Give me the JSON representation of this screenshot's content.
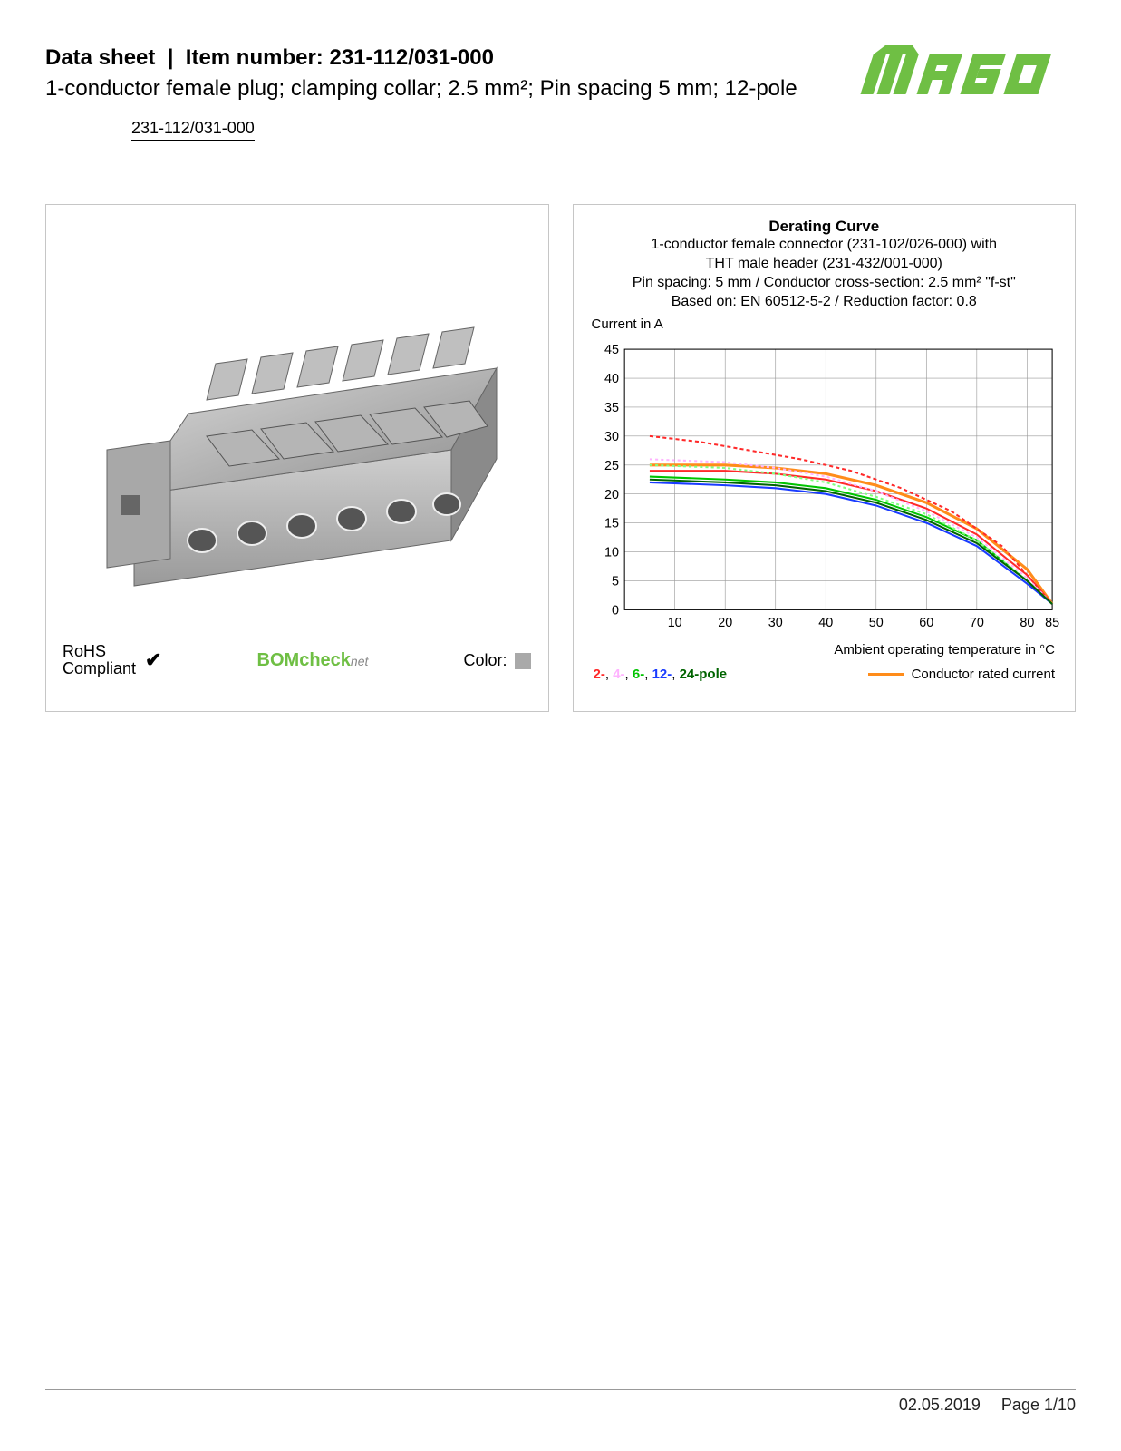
{
  "header": {
    "label_datasheet": "Data sheet",
    "label_itemnumber": "Item number:",
    "part_number": "231-112/031-000",
    "description": "1-conductor female plug; clamping collar; 2.5 mm²; Pin spacing 5 mm; 12-pole",
    "link_text": "231-112/031-000"
  },
  "logo": {
    "name": "WAGO",
    "color": "#6fbf44"
  },
  "product_panel": {
    "rohs_line1": "RoHS",
    "rohs_line2": "Compliant",
    "bomcheck": "BOMcheck",
    "bomcheck_suffix": "net",
    "color_label": "Color:",
    "color_swatch": "#a9a9a9",
    "connector_color": "#b0b0b0"
  },
  "chart": {
    "title": "Derating Curve",
    "sub1": "1-conductor female connector (231-102/026-000) with",
    "sub2": "THT male header (231-432/001-000)",
    "sub3": "Pin spacing: 5 mm / Conductor cross-section: 2.5 mm² \"f-st\"",
    "sub4": "Based on: EN 60512-5-2 / Reduction factor: 0.8",
    "y_label": "Current in A",
    "x_label": "Ambient operating temperature in °C",
    "x_ticks": [
      10,
      20,
      30,
      40,
      50,
      60,
      70,
      80,
      85
    ],
    "y_ticks": [
      0,
      5,
      10,
      15,
      20,
      25,
      30,
      35,
      40,
      45
    ],
    "xlim": [
      0,
      85
    ],
    "ylim": [
      0,
      45
    ],
    "grid_color": "#999999",
    "series": {
      "conductor_rated": {
        "color": "#ff8c1a",
        "width": 3,
        "dash": "none",
        "points": [
          [
            5,
            25
          ],
          [
            20,
            25
          ],
          [
            30,
            24.5
          ],
          [
            40,
            23.5
          ],
          [
            50,
            21.5
          ],
          [
            60,
            18.5
          ],
          [
            70,
            14
          ],
          [
            80,
            7
          ],
          [
            85,
            1
          ]
        ]
      },
      "pole2_solid": {
        "color": "#ff2a2a",
        "width": 2,
        "dash": "none",
        "points": [
          [
            5,
            24
          ],
          [
            20,
            24
          ],
          [
            30,
            23.5
          ],
          [
            40,
            22.5
          ],
          [
            50,
            20.5
          ],
          [
            60,
            17.5
          ],
          [
            70,
            13
          ],
          [
            80,
            6
          ],
          [
            85,
            1
          ]
        ]
      },
      "pole2_dash": {
        "color": "#ff2a2a",
        "width": 2,
        "dash": "4,3",
        "points": [
          [
            5,
            30
          ],
          [
            15,
            29
          ],
          [
            25,
            27.5
          ],
          [
            35,
            26
          ],
          [
            45,
            24
          ],
          [
            55,
            21
          ],
          [
            65,
            17
          ],
          [
            75,
            11
          ],
          [
            83,
            3
          ]
        ]
      },
      "pole4": {
        "color": "#ffb3ff",
        "width": 2,
        "dash": "3,3",
        "points": [
          [
            5,
            26
          ],
          [
            20,
            25.5
          ],
          [
            30,
            24.5
          ],
          [
            40,
            23
          ],
          [
            50,
            20.5
          ],
          [
            60,
            17
          ],
          [
            70,
            12.5
          ],
          [
            80,
            5.5
          ],
          [
            85,
            1
          ]
        ]
      },
      "pole6": {
        "color": "#00c400",
        "width": 2,
        "dash": "none",
        "points": [
          [
            5,
            23
          ],
          [
            20,
            22.5
          ],
          [
            30,
            22
          ],
          [
            40,
            21
          ],
          [
            50,
            19
          ],
          [
            60,
            16
          ],
          [
            70,
            12
          ],
          [
            80,
            5
          ],
          [
            85,
            1
          ]
        ]
      },
      "pole6_dash": {
        "color": "#7fff7f",
        "width": 2,
        "dash": "3,3",
        "points": [
          [
            5,
            25
          ],
          [
            20,
            24.5
          ],
          [
            30,
            23.5
          ],
          [
            40,
            22
          ],
          [
            50,
            19.5
          ],
          [
            60,
            16.5
          ],
          [
            70,
            12
          ],
          [
            80,
            5
          ],
          [
            85,
            1
          ]
        ]
      },
      "pole12": {
        "color": "#1a3cff",
        "width": 2,
        "dash": "none",
        "points": [
          [
            5,
            22
          ],
          [
            20,
            21.5
          ],
          [
            30,
            21
          ],
          [
            40,
            20
          ],
          [
            50,
            18
          ],
          [
            60,
            15
          ],
          [
            70,
            11
          ],
          [
            80,
            4.5
          ],
          [
            85,
            1
          ]
        ]
      },
      "pole24": {
        "color": "#006400",
        "width": 2,
        "dash": "none",
        "points": [
          [
            5,
            22.5
          ],
          [
            20,
            22
          ],
          [
            30,
            21.5
          ],
          [
            40,
            20.5
          ],
          [
            50,
            18.5
          ],
          [
            60,
            15.5
          ],
          [
            70,
            11.5
          ],
          [
            80,
            5
          ],
          [
            85,
            1
          ]
        ]
      }
    },
    "legend": {
      "p2": {
        "text": "2-",
        "color": "#ff2a2a"
      },
      "p4": {
        "text": "4-",
        "color": "#ffb3ff"
      },
      "p6": {
        "text": "6-",
        "color": "#00c400"
      },
      "p12": {
        "text": "12-",
        "color": "#1a3cff"
      },
      "p24": {
        "text": "24-pole",
        "color": "#006400"
      },
      "sep": ", ",
      "rated": "Conductor rated current",
      "rated_color": "#ff8c1a"
    }
  },
  "footer": {
    "date": "02.05.2019",
    "page": "Page 1/10"
  }
}
